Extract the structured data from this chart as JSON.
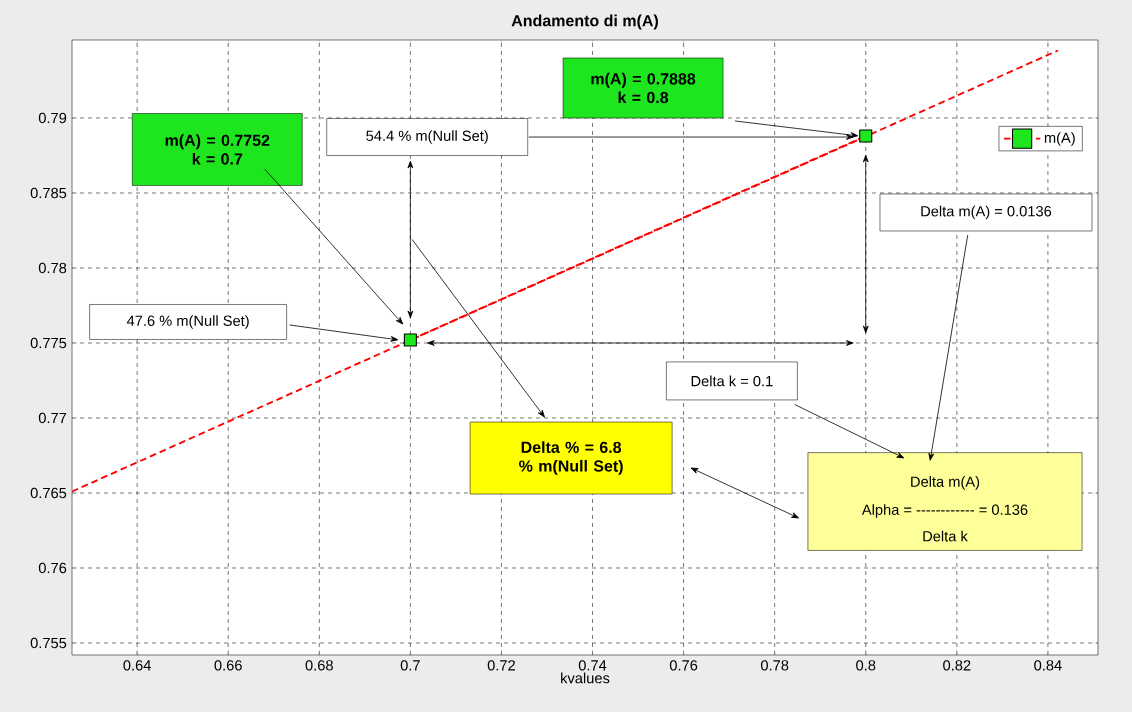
{
  "chart_data": {
    "type": "line",
    "title": "Andamento di m(A)",
    "xlabel": "kvalues",
    "xlim": [
      0.6257,
      0.851
    ],
    "ylim": [
      0.7542,
      0.7952
    ],
    "xticks": [
      0.64,
      0.66,
      0.68,
      0.7,
      0.72,
      0.74,
      0.76,
      0.78,
      0.8,
      0.82,
      0.84
    ],
    "yticks": [
      0.755,
      0.76,
      0.765,
      0.77,
      0.775,
      0.78,
      0.785,
      0.79
    ],
    "grid": true,
    "legend": "top right",
    "series": [
      {
        "color": "#ff0000",
        "line_style": "dashed",
        "x": [
          0.6257,
          0.8422
        ],
        "values": [
          0.7651,
          0.7945
        ]
      },
      {
        "name": "m(A)",
        "color": "#ff0000",
        "line_style": "dashed",
        "marker": "square",
        "x": [
          0.7,
          0.8
        ],
        "values": [
          0.7752,
          0.7888
        ]
      }
    ],
    "annotations": [
      "m(A) = 0.7752 k = 0.7",
      "m(A) = 0.7888 k = 0.8",
      "54.4 % m(Null Set)",
      "47.6 % m(Null Set)",
      "Delta m(A) = 0.0136",
      "Delta k = 0.1",
      "Delta % = 6.8 % m(Null Set)",
      "Delta m(A)",
      "Alpha = ------------ = 0.136",
      "Delta k"
    ]
  }
}
